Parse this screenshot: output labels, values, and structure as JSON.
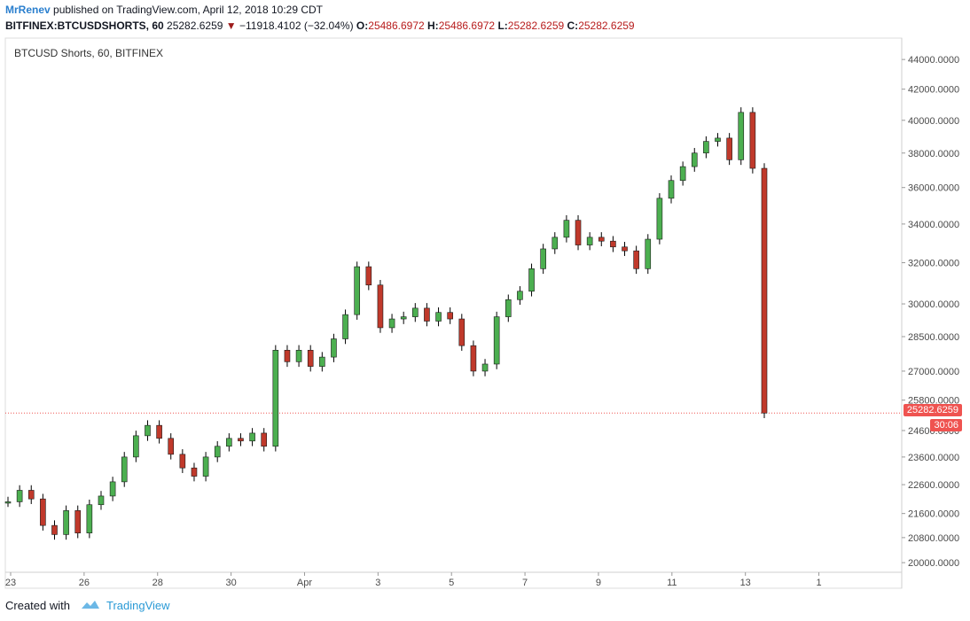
{
  "header": {
    "author": "MrRenev",
    "published": "published on TradingView.com, April 12, 2018 10:29 CDT",
    "symbol": "BITFINEX:BTCUSDSHORTS, 60",
    "last": "25282.6259",
    "change_arrow": "▼",
    "change": "−11918.4102 (−32.04%)",
    "o_label": "O:",
    "o": "25486.6972",
    "h_label": "H:",
    "h": "25486.6972",
    "l_label": "L:",
    "l": "25282.6259",
    "c_label": "C:",
    "c": "25282.6259"
  },
  "chart_legend": "BTCUSD Shorts, 60, BITFINEX",
  "price_badge": "25282.6259",
  "countdown_badge": "30:06",
  "footer": {
    "created_with": "Created with",
    "brand": "TradingView"
  },
  "colors": {
    "up": "#26a69a",
    "up_body": "#4caf50",
    "down_body": "#c0392b",
    "wick": "#000000",
    "price_line": "#ef5350",
    "badge": "#ef5350"
  },
  "chart_data": {
    "type": "candlestick",
    "title": "BTCUSD Shorts, 60, BITFINEX",
    "x_ticks": [
      "23",
      "26",
      "28",
      "30",
      "Apr",
      "3",
      "5",
      "7",
      "9",
      "11",
      "13",
      "1"
    ],
    "y_ticks": [
      "44000.0000",
      "42000.0000",
      "40000.0000",
      "38000.0000",
      "36000.0000",
      "34000.0000",
      "32000.0000",
      "30000.0000",
      "28500.0000",
      "27000.0000",
      "25800.0000",
      "24600.0000",
      "23600.0000",
      "22600.0000",
      "21600.0000",
      "20800.0000",
      "20000.0000"
    ],
    "y_scale": "log",
    "ylim": [
      19700,
      45500
    ],
    "current_price": 25282.6259,
    "points": [
      {
        "date": "Mar 23",
        "value": 22000
      },
      {
        "date": "Mar 23",
        "value": 22400
      },
      {
        "date": "Mar 23",
        "value": 22100
      },
      {
        "date": "Mar 24",
        "value": 21200
      },
      {
        "date": "Mar 24",
        "value": 20900
      },
      {
        "date": "Mar 24",
        "value": 21700
      },
      {
        "date": "Mar 24",
        "value": 20950
      },
      {
        "date": "Mar 25",
        "value": 21900
      },
      {
        "date": "Mar 25",
        "value": 22200
      },
      {
        "date": "Mar 25",
        "value": 22700
      },
      {
        "date": "Mar 26",
        "value": 23600
      },
      {
        "date": "Mar 26",
        "value": 24400
      },
      {
        "date": "Mar 26",
        "value": 24800
      },
      {
        "date": "Mar 26",
        "value": 24300
      },
      {
        "date": "Mar 27",
        "value": 23700
      },
      {
        "date": "Mar 27",
        "value": 23200
      },
      {
        "date": "Mar 27",
        "value": 22900
      },
      {
        "date": "Mar 27",
        "value": 23600
      },
      {
        "date": "Mar 28",
        "value": 24000
      },
      {
        "date": "Mar 28",
        "value": 24300
      },
      {
        "date": "Mar 28",
        "value": 24200
      },
      {
        "date": "Mar 29",
        "value": 24500
      },
      {
        "date": "Mar 29",
        "value": 24000
      },
      {
        "date": "Mar 29",
        "value": 27900
      },
      {
        "date": "Mar 30",
        "value": 27400
      },
      {
        "date": "Mar 30",
        "value": 27900
      },
      {
        "date": "Mar 30",
        "value": 27200
      },
      {
        "date": "Mar 31",
        "value": 27600
      },
      {
        "date": "Mar 31",
        "value": 28400
      },
      {
        "date": "Mar 31",
        "value": 29500
      },
      {
        "date": "Apr 1",
        "value": 31800
      },
      {
        "date": "Apr 1",
        "value": 30900
      },
      {
        "date": "Apr 1",
        "value": 28900
      },
      {
        "date": "Apr 2",
        "value": 29300
      },
      {
        "date": "Apr 2",
        "value": 29400
      },
      {
        "date": "Apr 2",
        "value": 29800
      },
      {
        "date": "Apr 3",
        "value": 29200
      },
      {
        "date": "Apr 3",
        "value": 29600
      },
      {
        "date": "Apr 3",
        "value": 29300
      },
      {
        "date": "Apr 4",
        "value": 28100
      },
      {
        "date": "Apr 4",
        "value": 27000
      },
      {
        "date": "Apr 4",
        "value": 27300
      },
      {
        "date": "Apr 5",
        "value": 29400
      },
      {
        "date": "Apr 5",
        "value": 30200
      },
      {
        "date": "Apr 5",
        "value": 30600
      },
      {
        "date": "Apr 6",
        "value": 31700
      },
      {
        "date": "Apr 6",
        "value": 32700
      },
      {
        "date": "Apr 6",
        "value": 33300
      },
      {
        "date": "Apr 7",
        "value": 34200
      },
      {
        "date": "Apr 7",
        "value": 32900
      },
      {
        "date": "Apr 7",
        "value": 33300
      },
      {
        "date": "Apr 8",
        "value": 33100
      },
      {
        "date": "Apr 8",
        "value": 32800
      },
      {
        "date": "Apr 8",
        "value": 32600
      },
      {
        "date": "Apr 9",
        "value": 31700
      },
      {
        "date": "Apr 9",
        "value": 33200
      },
      {
        "date": "Apr 9",
        "value": 35400
      },
      {
        "date": "Apr 10",
        "value": 36400
      },
      {
        "date": "Apr 10",
        "value": 37200
      },
      {
        "date": "Apr 10",
        "value": 38000
      },
      {
        "date": "Apr 11",
        "value": 38700
      },
      {
        "date": "Apr 11",
        "value": 38900
      },
      {
        "date": "Apr 11",
        "value": 37600
      },
      {
        "date": "Apr 12",
        "value": 40500
      },
      {
        "date": "Apr 12",
        "value": 37100
      },
      {
        "date": "Apr 12",
        "value": 25282.6259
      }
    ]
  }
}
